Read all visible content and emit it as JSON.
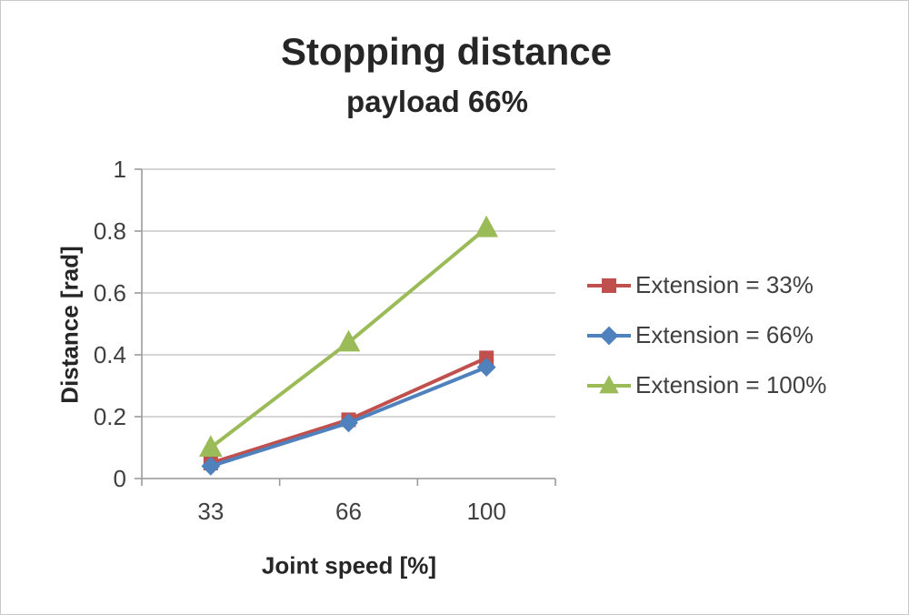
{
  "window": {
    "background": "#ffffff",
    "border_color": "#c9c9c9"
  },
  "colors": {
    "gridline": "#bdbdbd",
    "axis": "#9b9b9b",
    "tick_text": "#404040",
    "title_text": "#262626"
  },
  "chart_data": {
    "type": "line",
    "title": "Stopping distance",
    "subtitle": "payload 66%",
    "xlabel": "Joint speed [%]",
    "ylabel": "Distance [rad]",
    "categories": [
      "33",
      "66",
      "100"
    ],
    "series": [
      {
        "name": "Extension = 33%",
        "marker": "square",
        "color": "#C0504D",
        "values": [
          0.05,
          0.19,
          0.39
        ]
      },
      {
        "name": "Extension = 66%",
        "marker": "diamond",
        "color": "#4F81BD",
        "values": [
          0.04,
          0.18,
          0.36
        ]
      },
      {
        "name": "Extension = 100%",
        "marker": "triangle",
        "color": "#9BBB59",
        "values": [
          0.1,
          0.44,
          0.81
        ]
      }
    ],
    "ylim": [
      0,
      1
    ],
    "yticks": [
      0,
      0.2,
      0.4,
      0.6,
      0.8,
      1
    ],
    "ytick_labels": [
      "0",
      "0.2",
      "0.4",
      "0.6",
      "0.8",
      "1"
    ],
    "grid": true,
    "legend_position": "right"
  }
}
